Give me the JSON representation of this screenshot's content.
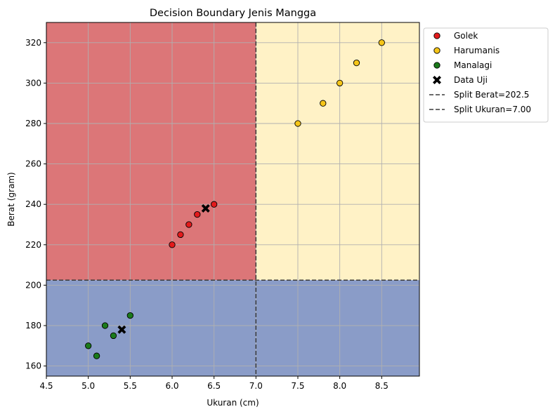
{
  "chart_data": {
    "type": "scatter",
    "title": "Decision Boundary Jenis Mangga",
    "xlabel": "Ukuran (cm)",
    "ylabel": "Berat (gram)",
    "xlim": [
      4.5,
      8.95
    ],
    "ylim": [
      155,
      330
    ],
    "xticks": [
      "4.5",
      "5.0",
      "5.5",
      "6.0",
      "6.5",
      "7.0",
      "7.5",
      "8.0",
      "8.5"
    ],
    "yticks": [
      "160",
      "180",
      "200",
      "220",
      "240",
      "260",
      "280",
      "300",
      "320"
    ],
    "grid": true,
    "legend_position": "outside-upper-right",
    "regions": [
      {
        "class": "Golek",
        "x_range": [
          4.5,
          7.0
        ],
        "y_range": [
          202.5,
          330
        ],
        "color": "#dc7678"
      },
      {
        "class": "Harumanis",
        "x_range": [
          7.0,
          8.95
        ],
        "y_range": [
          202.5,
          330
        ],
        "color": "#fff2c6"
      },
      {
        "class": "Manalagi",
        "x_range": [
          4.5,
          8.95
        ],
        "y_range": [
          155,
          202.5
        ],
        "color": "#8a9cc8"
      }
    ],
    "series": [
      {
        "name": "Golek",
        "color": "#e31a1c",
        "marker": "circle",
        "points": [
          [
            6.0,
            220
          ],
          [
            6.1,
            225
          ],
          [
            6.2,
            230
          ],
          [
            6.3,
            235
          ],
          [
            6.5,
            240
          ]
        ]
      },
      {
        "name": "Harumanis",
        "color": "#f5c518",
        "marker": "circle",
        "points": [
          [
            7.5,
            280
          ],
          [
            7.8,
            290
          ],
          [
            8.0,
            300
          ],
          [
            8.2,
            310
          ],
          [
            8.5,
            320
          ]
        ]
      },
      {
        "name": "Manalagi",
        "color": "#1b7a1b",
        "marker": "circle",
        "points": [
          [
            5.0,
            170
          ],
          [
            5.1,
            165
          ],
          [
            5.2,
            180
          ],
          [
            5.3,
            175
          ],
          [
            5.5,
            185
          ]
        ]
      },
      {
        "name": "Data Uji",
        "color": "#000000",
        "marker": "X",
        "points": [
          [
            6.4,
            238
          ],
          [
            5.4,
            178
          ]
        ]
      }
    ],
    "splits": [
      {
        "name": "Split Berat=202.5",
        "axis": "y",
        "value": 202.5
      },
      {
        "name": "Split Ukuran=7.00",
        "axis": "x",
        "value": 7.0
      }
    ],
    "legend": [
      "Golek",
      "Harumanis",
      "Manalagi",
      "Data Uji",
      "Split Berat=202.5",
      "Split Ukuran=7.00"
    ]
  }
}
